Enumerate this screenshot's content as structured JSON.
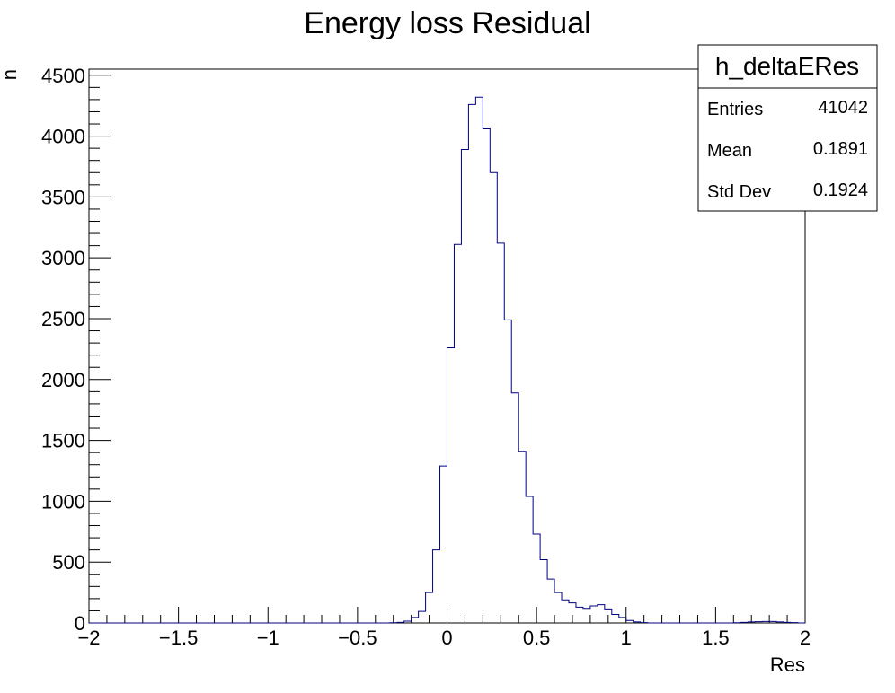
{
  "chart_data": {
    "type": "histogram",
    "title": "Energy loss Residual",
    "xlabel": "Res",
    "ylabel": "n",
    "xlim": [
      -2,
      2
    ],
    "ylim": [
      0,
      4550
    ],
    "bin_width": 0.04,
    "x_ticks": [
      {
        "value": -2,
        "label": "−2"
      },
      {
        "value": -1.5,
        "label": "−1.5"
      },
      {
        "value": -1,
        "label": "−1"
      },
      {
        "value": -0.5,
        "label": "−0.5"
      },
      {
        "value": 0,
        "label": "0"
      },
      {
        "value": 0.5,
        "label": "0.5"
      },
      {
        "value": 1,
        "label": "1"
      },
      {
        "value": 1.5,
        "label": "1.5"
      },
      {
        "value": 2,
        "label": "2"
      }
    ],
    "y_ticks": [
      {
        "value": 0,
        "label": "0"
      },
      {
        "value": 500,
        "label": "500"
      },
      {
        "value": 1000,
        "label": "1000"
      },
      {
        "value": 1500,
        "label": "1500"
      },
      {
        "value": 2000,
        "label": "2000"
      },
      {
        "value": 2500,
        "label": "2500"
      },
      {
        "value": 3000,
        "label": "3000"
      },
      {
        "value": 3500,
        "label": "3500"
      },
      {
        "value": 4000,
        "label": "4000"
      },
      {
        "value": 4500,
        "label": "4500"
      }
    ],
    "bins": [
      {
        "x": -0.32,
        "value": 2
      },
      {
        "x": -0.28,
        "value": 5
      },
      {
        "x": -0.24,
        "value": 15
      },
      {
        "x": -0.2,
        "value": 45
      },
      {
        "x": -0.16,
        "value": 95
      },
      {
        "x": -0.12,
        "value": 250
      },
      {
        "x": -0.08,
        "value": 600
      },
      {
        "x": -0.04,
        "value": 1290
      },
      {
        "x": 0.0,
        "value": 2260
      },
      {
        "x": 0.04,
        "value": 3110
      },
      {
        "x": 0.08,
        "value": 3890
      },
      {
        "x": 0.12,
        "value": 4260
      },
      {
        "x": 0.16,
        "value": 4320
      },
      {
        "x": 0.2,
        "value": 4060
      },
      {
        "x": 0.24,
        "value": 3700
      },
      {
        "x": 0.28,
        "value": 3120
      },
      {
        "x": 0.32,
        "value": 2490
      },
      {
        "x": 0.36,
        "value": 1890
      },
      {
        "x": 0.4,
        "value": 1410
      },
      {
        "x": 0.44,
        "value": 1040
      },
      {
        "x": 0.48,
        "value": 730
      },
      {
        "x": 0.52,
        "value": 520
      },
      {
        "x": 0.56,
        "value": 360
      },
      {
        "x": 0.6,
        "value": 250
      },
      {
        "x": 0.64,
        "value": 190
      },
      {
        "x": 0.68,
        "value": 165
      },
      {
        "x": 0.72,
        "value": 130
      },
      {
        "x": 0.76,
        "value": 120
      },
      {
        "x": 0.8,
        "value": 140
      },
      {
        "x": 0.84,
        "value": 150
      },
      {
        "x": 0.88,
        "value": 115
      },
      {
        "x": 0.92,
        "value": 70
      },
      {
        "x": 0.96,
        "value": 45
      },
      {
        "x": 1.0,
        "value": 20
      },
      {
        "x": 1.04,
        "value": 8
      },
      {
        "x": 1.08,
        "value": 3
      },
      {
        "x": 1.6,
        "value": 2
      },
      {
        "x": 1.64,
        "value": 5
      },
      {
        "x": 1.68,
        "value": 8
      },
      {
        "x": 1.72,
        "value": 10
      },
      {
        "x": 1.76,
        "value": 12
      },
      {
        "x": 1.8,
        "value": 12
      },
      {
        "x": 1.84,
        "value": 8
      },
      {
        "x": 1.88,
        "value": 5
      },
      {
        "x": 1.92,
        "value": 3
      }
    ],
    "legend_position": "top-right",
    "stats_box": {
      "name": "h_deltaERes",
      "rows": [
        {
          "label": "Entries",
          "value": "41042"
        },
        {
          "label": "Mean",
          "value": "0.1891"
        },
        {
          "label": "Std Dev",
          "value": "0.1924"
        }
      ]
    },
    "colors": {
      "line": "#000080",
      "frame": "#000000",
      "background": "#ffffff"
    }
  }
}
